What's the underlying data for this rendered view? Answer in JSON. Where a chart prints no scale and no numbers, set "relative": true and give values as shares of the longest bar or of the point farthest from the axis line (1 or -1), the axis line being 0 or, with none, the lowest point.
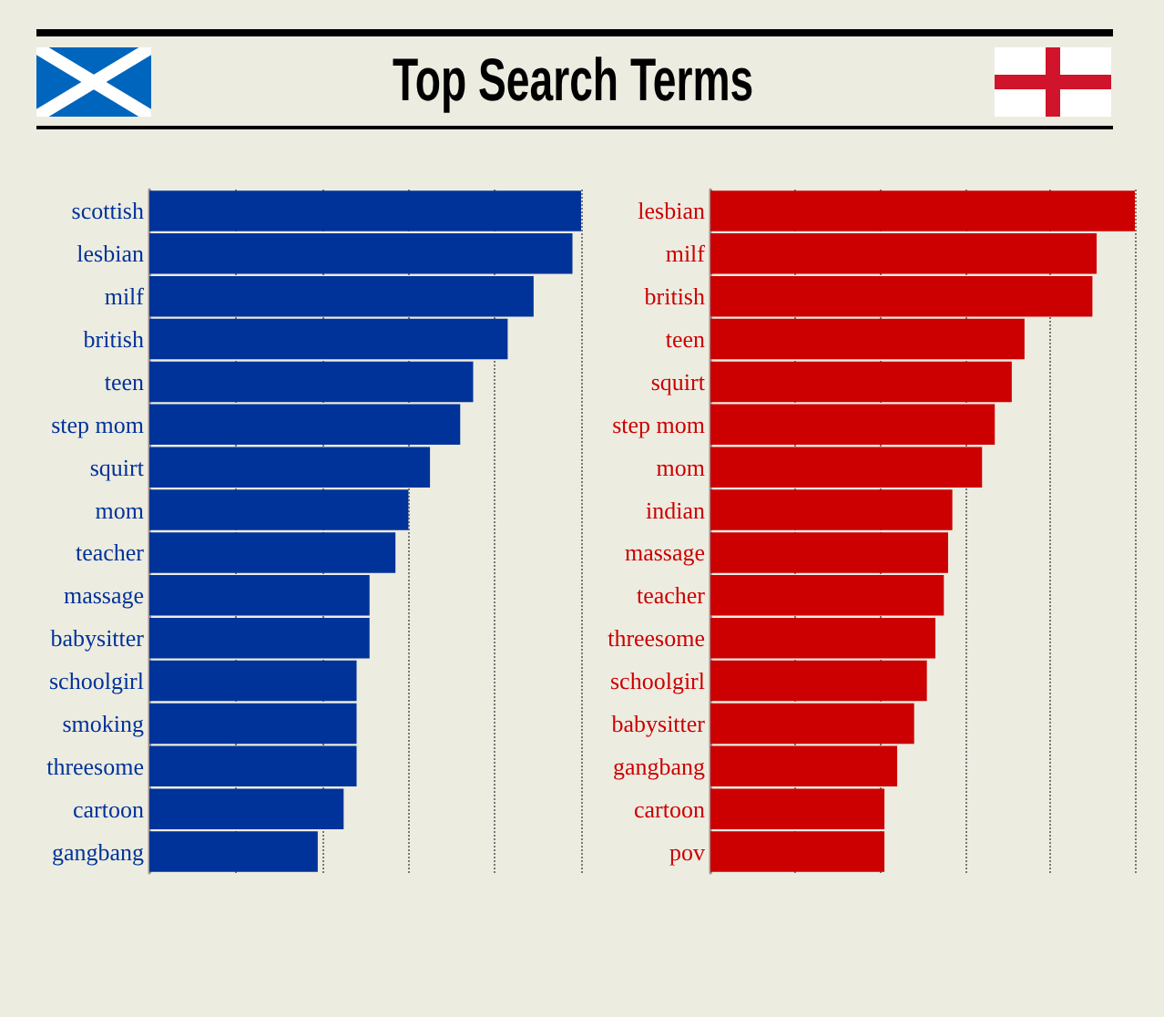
{
  "chart_data": [
    {
      "type": "bar",
      "orientation": "horizontal",
      "relative": true,
      "title": "Top Search Terms",
      "categories": [
        "scottish",
        "lesbian",
        "milf",
        "british",
        "teen",
        "step mom",
        "squirt",
        "mom",
        "teacher",
        "massage",
        "babysitter",
        "schoolgirl",
        "smoking",
        "threesome",
        "cartoon",
        "gangbang"
      ],
      "values": [
        1,
        0.98,
        0.89,
        0.83,
        0.75,
        0.72,
        0.65,
        0.6,
        0.57,
        0.51,
        0.51,
        0.48,
        0.48,
        0.48,
        0.45,
        0.39
      ],
      "color": "#003399",
      "grid": "x"
    },
    {
      "type": "bar",
      "orientation": "horizontal",
      "relative": true,
      "categories": [
        "lesbian",
        "milf",
        "british",
        "teen",
        "squirt",
        "step mom",
        "mom",
        "indian",
        "massage",
        "teacher",
        "threesome",
        "schoolgirl",
        "babysitter",
        "gangbang",
        "cartoon",
        "pov"
      ],
      "values": [
        1,
        0.91,
        0.9,
        0.74,
        0.71,
        0.67,
        0.64,
        0.57,
        0.56,
        0.55,
        0.53,
        0.51,
        0.48,
        0.44,
        0.41,
        0.41
      ],
      "color": "#cc0000",
      "grid": "x"
    }
  ]
}
